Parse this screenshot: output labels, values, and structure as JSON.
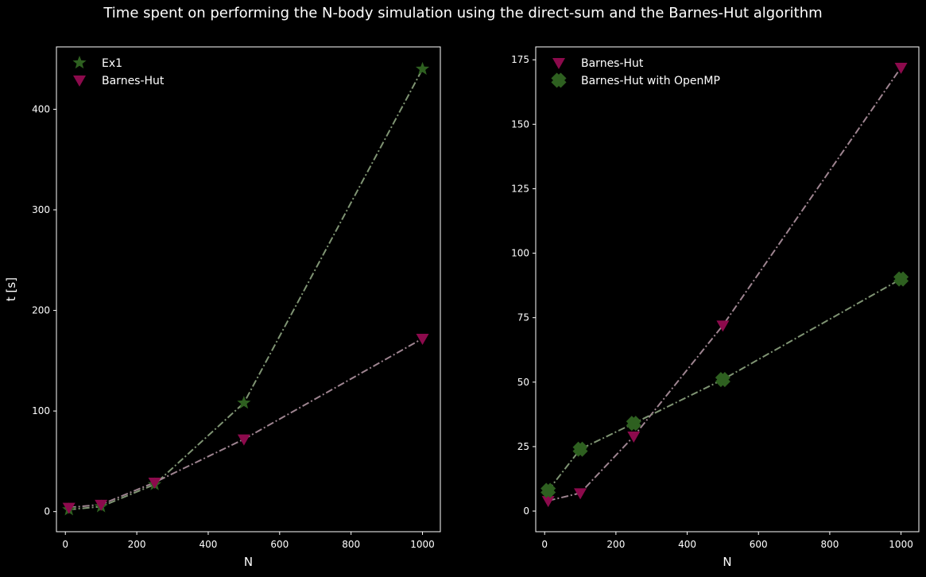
{
  "figure": {
    "title": "Time spent on performing the N-body simulation using the direct-sum and the Barnes-Hut algorithm"
  },
  "chart_data": [
    {
      "type": "line",
      "xlabel": "N",
      "ylabel": "t [s]",
      "xlim": [
        -25,
        1050
      ],
      "ylim": [
        -20,
        462
      ],
      "xticks": [
        0,
        200,
        400,
        600,
        800,
        1000
      ],
      "yticks": [
        0,
        100,
        200,
        300,
        400
      ],
      "grid": false,
      "legend_position": "top-left",
      "series": [
        {
          "name": "Ex1",
          "marker": "star",
          "marker_color": "#2e6020",
          "line_color": "#7f9473",
          "x": [
            10,
            100,
            250,
            500,
            1000
          ],
          "y": [
            2,
            5,
            27,
            108,
            440
          ]
        },
        {
          "name": "Barnes-Hut",
          "marker": "triangle-down",
          "marker_color": "#8c0a4c",
          "line_color": "#9e8490",
          "x": [
            10,
            100,
            250,
            500,
            1000
          ],
          "y": [
            4,
            7,
            29,
            72,
            172
          ]
        }
      ]
    },
    {
      "type": "line",
      "xlabel": "N",
      "ylabel": "",
      "xlim": [
        -25,
        1050
      ],
      "ylim": [
        -8,
        180
      ],
      "xticks": [
        0,
        200,
        400,
        600,
        800,
        1000
      ],
      "yticks": [
        0,
        25,
        50,
        75,
        100,
        125,
        150,
        175
      ],
      "grid": false,
      "legend_position": "top-left",
      "series": [
        {
          "name": "Barnes-Hut",
          "marker": "triangle-down",
          "marker_color": "#8c0a4c",
          "line_color": "#9e8490",
          "x": [
            10,
            100,
            250,
            500,
            1000
          ],
          "y": [
            4,
            7,
            29,
            72,
            172
          ]
        },
        {
          "name": "Barnes-Hut with OpenMP",
          "marker": "x-filled",
          "marker_color": "#2e6020",
          "line_color": "#7f9473",
          "x": [
            10,
            100,
            250,
            500,
            1000
          ],
          "y": [
            8,
            24,
            34,
            51,
            90
          ]
        }
      ]
    }
  ]
}
